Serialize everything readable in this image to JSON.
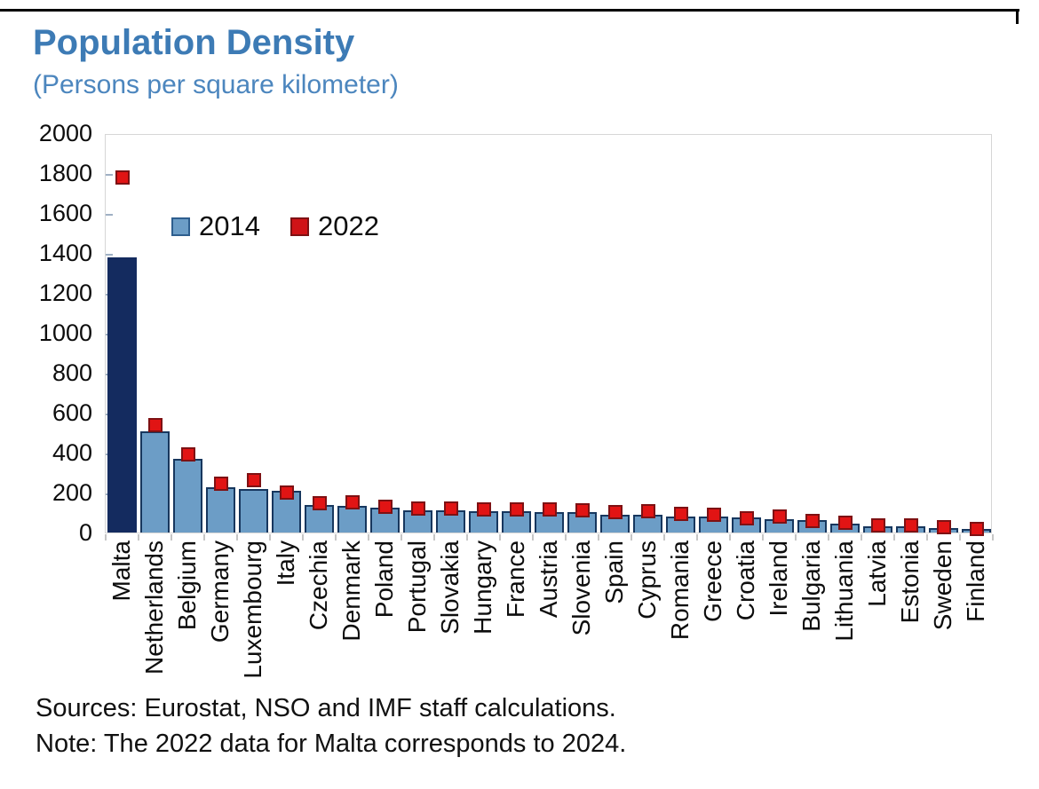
{
  "header": {
    "title": "Population Density",
    "subtitle": "(Persons per square kilometer)"
  },
  "legend": {
    "items": [
      {
        "label": "2014",
        "fill": "#6c9dc6",
        "border": "#2e5e8e"
      },
      {
        "label": "2022",
        "fill": "#d01317",
        "border": "#7e1113"
      }
    ]
  },
  "footer": {
    "sources": "Sources: Eurostat, NSO and IMF staff calculations.",
    "note": "Note: The 2022 data for Malta corresponds to 2024."
  },
  "colors": {
    "bar_fill": "#6c9dc6",
    "bar_border": "#17375e",
    "malta_bar_fill": "#142b5f",
    "marker_fill": "#e11414",
    "marker_border": "#7e1113",
    "title_blue": "#3d7bb5",
    "subtitle_blue": "#4c86be",
    "frame_gray": "#d6d6d6"
  },
  "chart_data": {
    "type": "bar",
    "title": "Population Density",
    "subtitle": "(Persons per square kilometer)",
    "xlabel": "",
    "ylabel": "Persons per square kilometer",
    "ylim": [
      0,
      2000
    ],
    "ytick_step": 200,
    "ytick_labels": [
      "0",
      "200",
      "400",
      "600",
      "800",
      "1000",
      "1200",
      "1400",
      "1600",
      "1800",
      "2000"
    ],
    "grid": false,
    "legend_position": "top-left-inside",
    "categories": [
      "Malta",
      "Netherlands",
      "Belgium",
      "Germany",
      "Luxembourg",
      "Italy",
      "Czechia",
      "Denmark",
      "Poland",
      "Portugal",
      "Slovakia",
      "Hungary",
      "France",
      "Austria",
      "Slovenia",
      "Spain",
      "Cyprus",
      "Romania",
      "Greece",
      "Croatia",
      "Ireland",
      "Bulgaria",
      "Lithuania",
      "Latvia",
      "Estonia",
      "Sweden",
      "Finland"
    ],
    "series": [
      {
        "name": "2014",
        "mark": "bar",
        "values": [
          1380,
          505,
          370,
          228,
          218,
          210,
          138,
          133,
          123,
          113,
          111,
          107,
          105,
          104,
          103,
          90,
          90,
          82,
          80,
          75,
          68,
          62,
          45,
          32,
          30,
          24,
          18
        ]
      },
      {
        "name": "2022",
        "mark": "square-point",
        "values": [
          1780,
          540,
          392,
          246,
          264,
          198,
          148,
          150,
          130,
          122,
          120,
          114,
          114,
          117,
          113,
          101,
          107,
          93,
          88,
          70,
          82,
          58,
          48,
          34,
          34,
          28,
          20
        ]
      }
    ]
  }
}
